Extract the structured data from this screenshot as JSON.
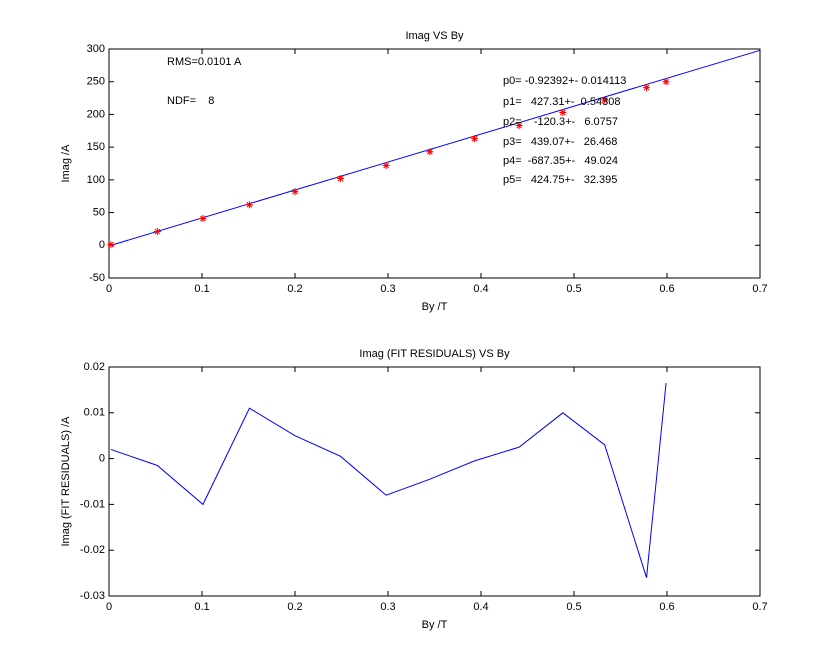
{
  "chart_data": [
    {
      "type": "line",
      "title": "Imag VS By",
      "xlabel": "By /T",
      "ylabel": "Imag /A",
      "xlim": [
        0,
        0.7
      ],
      "ylim": [
        -50,
        300
      ],
      "xticks": [
        0,
        0.1,
        0.2,
        0.3,
        0.4,
        0.5,
        0.6,
        0.7
      ],
      "yticks": [
        -50,
        0,
        50,
        100,
        150,
        200,
        250,
        300
      ],
      "annotations": [
        "RMS=0.0101 A",
        "NDF=    8",
        "p0= -0.92392+- 0.014113",
        "p1=   427.31+-  0.54308",
        "p2=    -120.3+-   6.0757",
        "p3=   439.07+-   26.468",
        "p4=  -687.35+-   49.024",
        "p5=   424.75+-   32.395"
      ],
      "series": [
        {
          "color": "#0000ff",
          "linestyle": "solid",
          "x": [
            0,
            0.7
          ],
          "values": [
            -0.9,
            298
          ]
        },
        {
          "color": "#ff0000",
          "linestyle": "none",
          "marker": "*",
          "x": [
            0.002,
            0.052,
            0.101,
            0.151,
            0.2,
            0.249,
            0.298,
            0.345,
            0.393,
            0.441,
            0.488,
            0.533,
            0.578,
            0.599
          ],
          "values": [
            1,
            21,
            41,
            62,
            82,
            102,
            122,
            143,
            163,
            183,
            203,
            222,
            241,
            250
          ]
        }
      ]
    },
    {
      "type": "line",
      "title": "Imag (FIT RESIDUALS) VS By",
      "xlabel": "By /T",
      "ylabel": "Imag (FIT RESIDUALS) /A",
      "xlim": [
        0,
        0.7
      ],
      "ylim": [
        -0.03,
        0.02
      ],
      "xticks": [
        0,
        0.1,
        0.2,
        0.3,
        0.4,
        0.5,
        0.6,
        0.7
      ],
      "yticks": [
        -0.03,
        -0.02,
        -0.01,
        0,
        0.01,
        0.02
      ],
      "series": [
        {
          "color": "#0000ff",
          "linestyle": "solid",
          "x": [
            0.002,
            0.052,
            0.101,
            0.151,
            0.2,
            0.249,
            0.298,
            0.345,
            0.393,
            0.441,
            0.488,
            0.533,
            0.578,
            0.599
          ],
          "values": [
            0.002,
            -0.0015,
            -0.01,
            0.011,
            0.005,
            0.0005,
            -0.008,
            -0.0045,
            -0.0005,
            0.0025,
            0.01,
            0.003,
            -0.026,
            0.0165
          ]
        }
      ]
    }
  ]
}
